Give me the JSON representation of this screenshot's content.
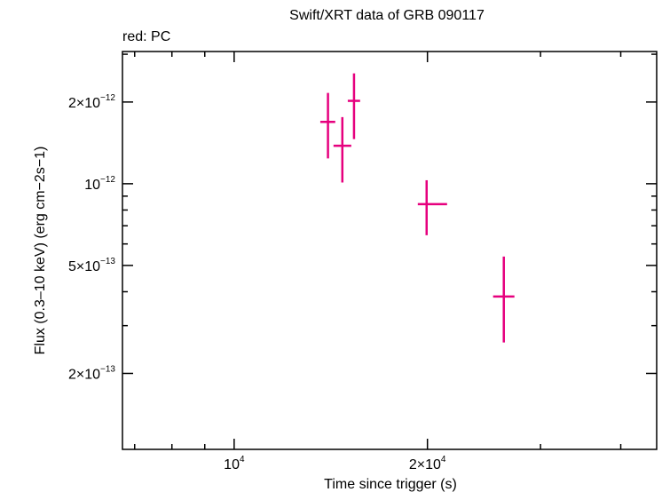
{
  "chart_data": {
    "type": "errorbar",
    "title": "Swift/XRT data of GRB 090117",
    "annotation": "red: PC",
    "x_label": "Time since trigger (s)",
    "y_label": "Flux (0.3–10 keV) (erg cm−2s−1)",
    "xlog": true,
    "ylog": true,
    "color": "#e6007e",
    "xlim": [
      6700,
      45500
    ],
    "ylim": [
      1.05e-13,
      3.07e-12
    ],
    "xticks": [
      {
        "value": 10000,
        "label": "104"
      },
      {
        "value": 20000,
        "label": "2×104"
      }
    ],
    "xminor": [
      7000,
      8000,
      9000,
      30000,
      40000
    ],
    "yticks": [
      {
        "value": 2e-13,
        "label": "2×10−13"
      },
      {
        "value": 5e-13,
        "label": "5×10−13"
      },
      {
        "value": 1e-12,
        "label": "10−12"
      },
      {
        "value": 2e-12,
        "label": "2×10−12"
      }
    ],
    "yminor": [
      3e-13,
      4e-13,
      6e-13,
      7e-13,
      8e-13,
      9e-13,
      3e-12
    ],
    "series": [
      {
        "name": "PC",
        "x": [
          14000,
          14740,
          15370,
          19940,
          26300
        ],
        "xlow": [
          13620,
          14280,
          15030,
          19320,
          25310
        ],
        "xhigh": [
          14370,
          15220,
          15710,
          21460,
          27320
        ],
        "values": [
          1.69e-12,
          1.38e-12,
          2.02e-12,
          8.41e-13,
          3.84e-13
        ],
        "ylow": [
          1.24e-12,
          1.01e-12,
          1.46e-12,
          6.46e-13,
          2.6e-13
        ],
        "yhigh": [
          2.16e-12,
          1.76e-12,
          2.55e-12,
          1.03e-12,
          5.39e-13
        ]
      }
    ]
  }
}
